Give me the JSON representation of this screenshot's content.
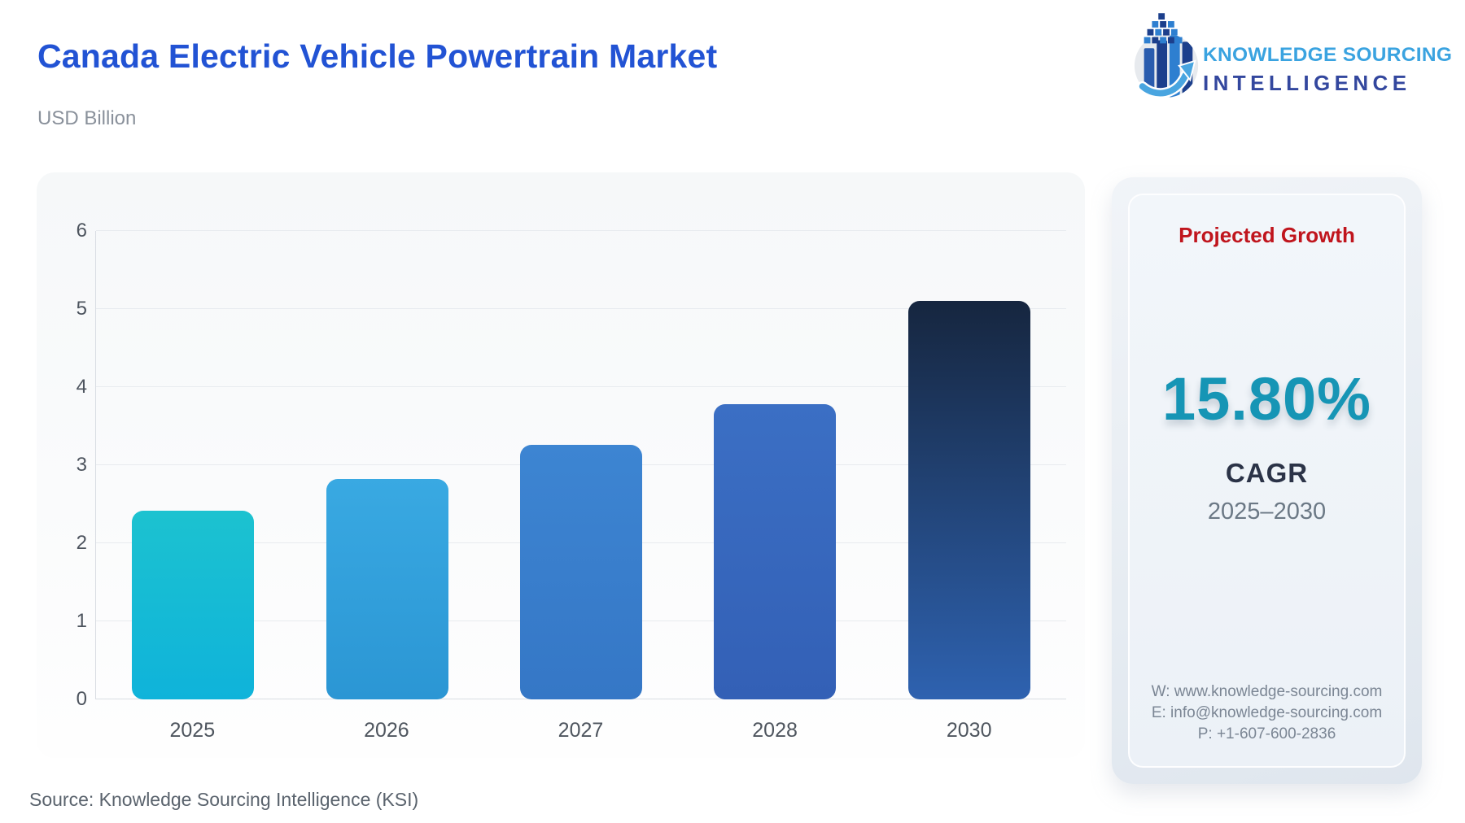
{
  "header": {
    "title": "Canada Electric Vehicle Powertrain Market",
    "subtitle": "USD Billion",
    "logo": {
      "line1": "KNOWLEDGE SOURCING",
      "line2": "INTELLIGENCE"
    }
  },
  "chart_data": {
    "type": "bar",
    "title": "Canada Electric Vehicle Powertrain Market",
    "units": "USD Billion",
    "categories": [
      "2025",
      "2026",
      "2027",
      "2028",
      "2030"
    ],
    "values": [
      2.42,
      2.82,
      3.26,
      3.78,
      5.1
    ],
    "xlabel": "",
    "ylabel": "",
    "ylim": [
      0,
      6
    ],
    "ytick_step": 1,
    "grid": true,
    "legend": false,
    "bar_colors": [
      {
        "top": "#1cc2d0",
        "bottom": "#0fb3da"
      },
      {
        "top": "#39a9e2",
        "bottom": "#2b96d4"
      },
      {
        "top": "#3d85d2",
        "bottom": "#3577c6"
      },
      {
        "top": "#3b6fc4",
        "bottom": "#3360b6"
      },
      {
        "top": "#16263f",
        "bottom": "#2e62b0"
      }
    ]
  },
  "growth_panel": {
    "title": "Projected Growth",
    "value": "15.80%",
    "metric": "CAGR",
    "period": "2025–2030",
    "contact": {
      "website": "W: www.knowledge-sourcing.com",
      "email": "E: info@knowledge-sourcing.com",
      "phone": "P: +1-607-600-2836"
    }
  },
  "footer": {
    "source": "Source: Knowledge Sourcing Intelligence (KSI)"
  },
  "colors": {
    "title_blue": "#2253d4",
    "subtitle_gray": "#8a919b",
    "growth_red": "#c0151d",
    "cagr_teal": "#1695b5",
    "navy": "#2b3347",
    "logo_light_blue": "#3aa3e0",
    "logo_dark_blue": "#33479e"
  }
}
